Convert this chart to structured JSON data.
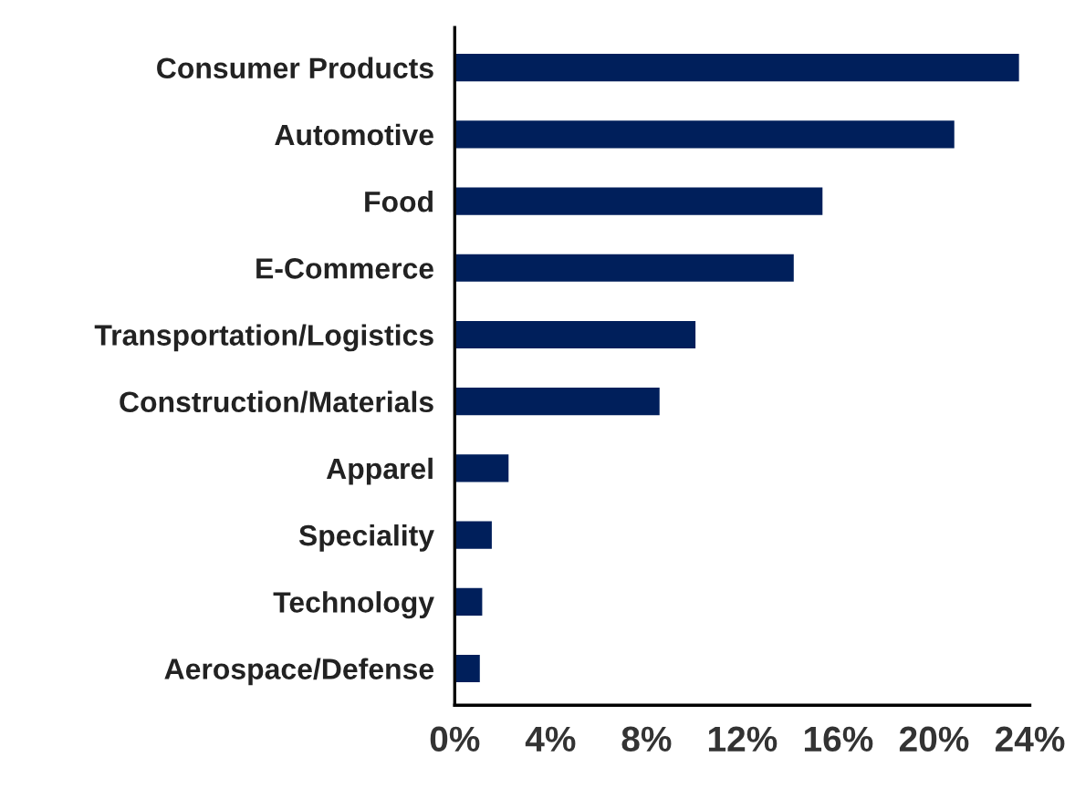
{
  "chart_data": {
    "type": "bar",
    "orientation": "horizontal",
    "categories": [
      "Consumer Products",
      "Automotive",
      "Food",
      "E-Commerce",
      "Transportation/Logistics",
      "Construction/Materials",
      "Apparel",
      "Speciality",
      "Technology",
      "Aerospace/Defense"
    ],
    "values": [
      23.6,
      20.9,
      15.4,
      14.2,
      10.1,
      8.6,
      2.3,
      1.6,
      1.2,
      1.1
    ],
    "color": "#001f5b",
    "xlim": [
      0,
      24
    ],
    "xticks": [
      {
        "value": 0,
        "label": "0%"
      },
      {
        "value": 4,
        "label": "4%"
      },
      {
        "value": 8,
        "label": "8%"
      },
      {
        "value": 12,
        "label": "12%"
      },
      {
        "value": 16,
        "label": "16%"
      },
      {
        "value": 20,
        "label": "20%"
      },
      {
        "value": 24,
        "label": "24%"
      }
    ],
    "grid": false
  }
}
